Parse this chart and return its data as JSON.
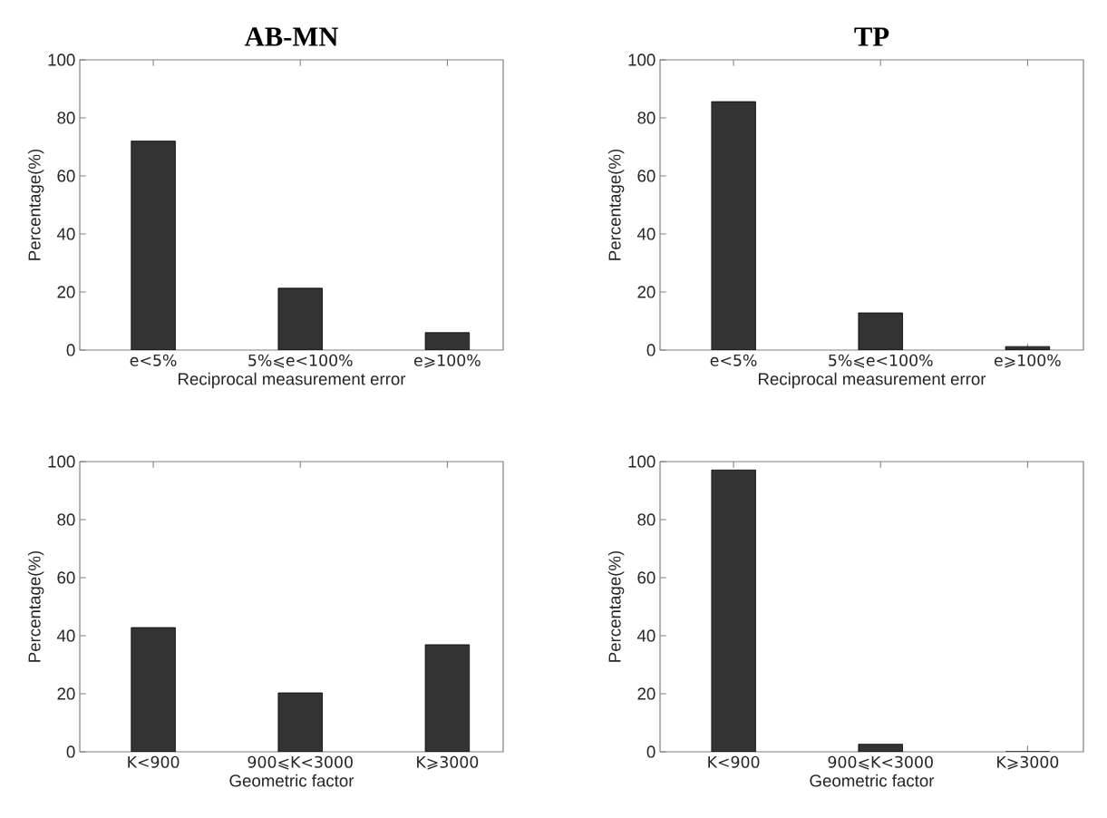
{
  "chart_data": [
    {
      "type": "bar",
      "title": "AB-MN",
      "categories": [
        "e<5%",
        "5%⩽e<100%",
        "e⩾100%"
      ],
      "values": [
        72,
        21.3,
        6
      ],
      "color": "#333333",
      "xlabel": "Reciprocal measurement error",
      "ylabel": "Percentage(%)",
      "ylim": [
        0,
        100
      ],
      "yticks": [
        0,
        20,
        40,
        60,
        80,
        100
      ]
    },
    {
      "type": "bar",
      "title": "TP",
      "categories": [
        "e<5%",
        "5%⩽e<100%",
        "e⩾100%"
      ],
      "values": [
        85.6,
        12.8,
        1.2
      ],
      "color": "#333333",
      "xlabel": "Reciprocal measurement error",
      "ylabel": "Percentage(%)",
      "ylim": [
        0,
        100
      ],
      "yticks": [
        0,
        20,
        40,
        60,
        80,
        100
      ]
    },
    {
      "type": "bar",
      "categories": [
        "K<900",
        "900⩽K<3000",
        "K⩾3000"
      ],
      "values": [
        42.8,
        20.3,
        36.9
      ],
      "color": "#333333",
      "xlabel": "Geometric factor",
      "ylabel": "Percentage(%)",
      "ylim": [
        0,
        100
      ],
      "yticks": [
        0,
        20,
        40,
        60,
        80,
        100
      ]
    },
    {
      "type": "bar",
      "categories": [
        "K<900",
        "900⩽K<3000",
        "K⩾3000"
      ],
      "values": [
        97.1,
        2.6,
        0
      ],
      "color": "#333333",
      "xlabel": "Geometric factor",
      "ylabel": "Percentage(%)",
      "ylim": [
        0,
        100
      ],
      "yticks": [
        0,
        20,
        40,
        60,
        80,
        100
      ]
    }
  ]
}
